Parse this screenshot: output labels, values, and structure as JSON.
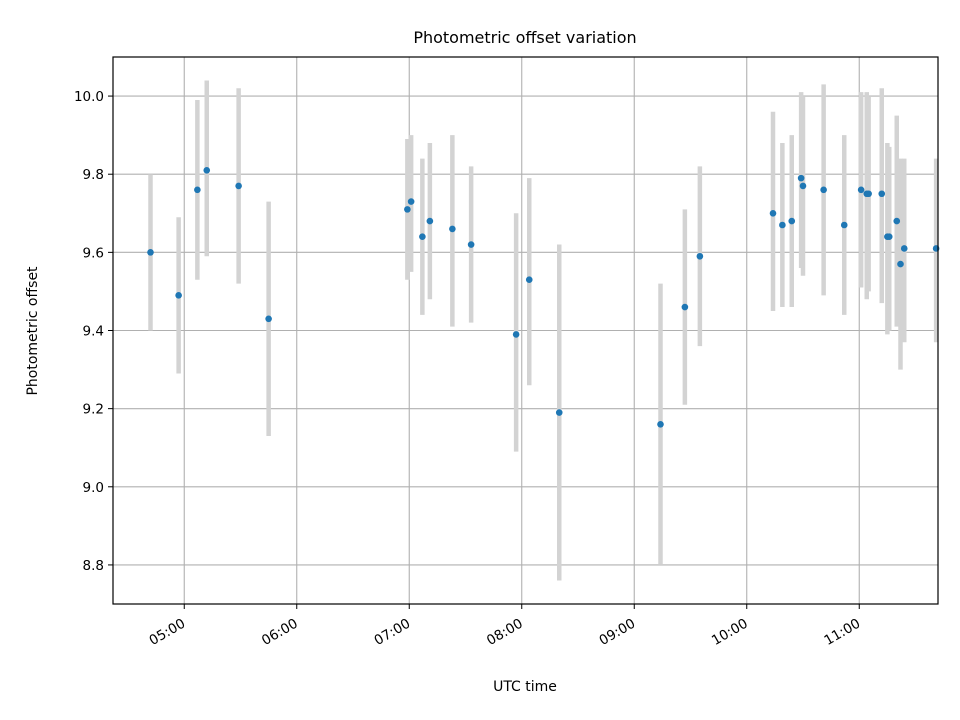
{
  "chart_data": {
    "type": "scatter",
    "title": "Photometric offset variation",
    "xlabel": "UTC time",
    "ylabel": "Photometric offset",
    "xlim": [
      "04:22",
      "11:42"
    ],
    "ylim": [
      8.7,
      10.1
    ],
    "x_ticks": [
      "05:00",
      "06:00",
      "07:00",
      "08:00",
      "09:00",
      "10:00",
      "11:00"
    ],
    "y_ticks": [
      "8.8",
      "9.0",
      "9.2",
      "9.4",
      "9.6",
      "9.8",
      "10.0"
    ],
    "grid": true,
    "legend": "none",
    "colors": {
      "points": "#1f77b4",
      "error_bars": "#d3d3d3",
      "grid": "#b0b0b0"
    },
    "points": [
      {
        "x": "04:42",
        "y": 9.6,
        "ylow": 9.4,
        "yhigh": 9.8
      },
      {
        "x": "04:57",
        "y": 9.49,
        "ylow": 9.29,
        "yhigh": 9.69
      },
      {
        "x": "05:07",
        "y": 9.76,
        "ylow": 9.53,
        "yhigh": 9.99
      },
      {
        "x": "05:12",
        "y": 9.81,
        "ylow": 9.59,
        "yhigh": 10.04
      },
      {
        "x": "05:29",
        "y": 9.77,
        "ylow": 9.52,
        "yhigh": 10.02
      },
      {
        "x": "05:45",
        "y": 9.43,
        "ylow": 9.13,
        "yhigh": 9.73
      },
      {
        "x": "06:59",
        "y": 9.71,
        "ylow": 9.53,
        "yhigh": 9.89
      },
      {
        "x": "07:01",
        "y": 9.73,
        "ylow": 9.55,
        "yhigh": 9.9
      },
      {
        "x": "07:07",
        "y": 9.64,
        "ylow": 9.44,
        "yhigh": 9.84
      },
      {
        "x": "07:11",
        "y": 9.68,
        "ylow": 9.48,
        "yhigh": 9.88
      },
      {
        "x": "07:23",
        "y": 9.66,
        "ylow": 9.41,
        "yhigh": 9.9
      },
      {
        "x": "07:33",
        "y": 9.62,
        "ylow": 9.42,
        "yhigh": 9.82
      },
      {
        "x": "07:57",
        "y": 9.39,
        "ylow": 9.09,
        "yhigh": 9.7
      },
      {
        "x": "08:04",
        "y": 9.53,
        "ylow": 9.26,
        "yhigh": 9.79
      },
      {
        "x": "08:20",
        "y": 9.19,
        "ylow": 8.76,
        "yhigh": 9.62
      },
      {
        "x": "09:14",
        "y": 9.16,
        "ylow": 8.8,
        "yhigh": 9.52
      },
      {
        "x": "09:27",
        "y": 9.46,
        "ylow": 9.21,
        "yhigh": 9.71
      },
      {
        "x": "09:35",
        "y": 9.59,
        "ylow": 9.36,
        "yhigh": 9.82
      },
      {
        "x": "10:14",
        "y": 9.7,
        "ylow": 9.45,
        "yhigh": 9.96
      },
      {
        "x": "10:19",
        "y": 9.67,
        "ylow": 9.46,
        "yhigh": 9.88
      },
      {
        "x": "10:24",
        "y": 9.68,
        "ylow": 9.46,
        "yhigh": 9.9
      },
      {
        "x": "10:29",
        "y": 9.79,
        "ylow": 9.56,
        "yhigh": 10.01
      },
      {
        "x": "10:30",
        "y": 9.77,
        "ylow": 9.54,
        "yhigh": 10.0
      },
      {
        "x": "10:41",
        "y": 9.76,
        "ylow": 9.49,
        "yhigh": 10.03
      },
      {
        "x": "10:52",
        "y": 9.67,
        "ylow": 9.44,
        "yhigh": 9.9
      },
      {
        "x": "11:01",
        "y": 9.76,
        "ylow": 9.51,
        "yhigh": 10.01
      },
      {
        "x": "11:04",
        "y": 9.75,
        "ylow": 9.48,
        "yhigh": 10.01
      },
      {
        "x": "11:05",
        "y": 9.75,
        "ylow": 9.5,
        "yhigh": 10.0
      },
      {
        "x": "11:12",
        "y": 9.75,
        "ylow": 9.47,
        "yhigh": 10.02
      },
      {
        "x": "11:15",
        "y": 9.64,
        "ylow": 9.39,
        "yhigh": 9.88
      },
      {
        "x": "11:16",
        "y": 9.64,
        "ylow": 9.4,
        "yhigh": 9.87
      },
      {
        "x": "11:20",
        "y": 9.68,
        "ylow": 9.41,
        "yhigh": 9.95
      },
      {
        "x": "11:22",
        "y": 9.57,
        "ylow": 9.3,
        "yhigh": 9.84
      },
      {
        "x": "11:24",
        "y": 9.61,
        "ylow": 9.37,
        "yhigh": 9.84
      },
      {
        "x": "11:41",
        "y": 9.61,
        "ylow": 9.37,
        "yhigh": 9.84
      }
    ]
  }
}
